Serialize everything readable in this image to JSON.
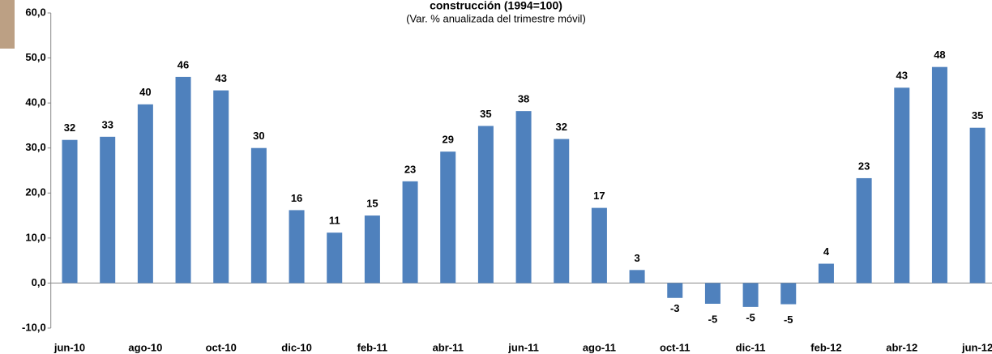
{
  "chart_data": {
    "type": "bar",
    "title": "construcción (1994=100)",
    "subtitle": "(Var. % anualizada del trimestre móvil)",
    "categories": [
      "jun-10",
      null,
      "ago-10",
      null,
      "oct-10",
      null,
      "dic-10",
      null,
      "feb-11",
      null,
      "abr-11",
      null,
      "jun-11",
      null,
      "ago-11",
      null,
      "oct-11",
      null,
      "dic-11",
      null,
      "feb-12",
      null,
      "abr-12",
      null,
      "jun-12"
    ],
    "values": [
      31.8,
      32.5,
      39.7,
      45.8,
      42.8,
      30.0,
      16.2,
      11.2,
      15.0,
      22.6,
      29.2,
      34.9,
      38.2,
      32.0,
      16.7,
      2.9,
      -3.3,
      -4.6,
      -5.3,
      -4.7,
      4.3,
      23.3,
      43.4,
      48.0,
      34.5
    ],
    "value_labels": [
      "32",
      "33",
      "40",
      "46",
      "43",
      "30",
      "16",
      "11",
      "15",
      "23",
      "29",
      "35",
      "38",
      "32",
      "17",
      "3",
      "-3",
      "-5",
      "-5",
      "-5",
      "4",
      "23",
      "43",
      "48",
      "35"
    ],
    "color": "#4f81bd",
    "ylim": [
      -10,
      60
    ],
    "yticks": [
      {
        "value": -10,
        "label": "-10,0"
      },
      {
        "value": 0,
        "label": "0,0"
      },
      {
        "value": 10,
        "label": "10,0"
      },
      {
        "value": 20,
        "label": "20,0"
      },
      {
        "value": 30,
        "label": "30,0"
      },
      {
        "value": 40,
        "label": "40,0"
      },
      {
        "value": 50,
        "label": "50,0"
      },
      {
        "value": 60,
        "label": "60,0"
      }
    ]
  }
}
